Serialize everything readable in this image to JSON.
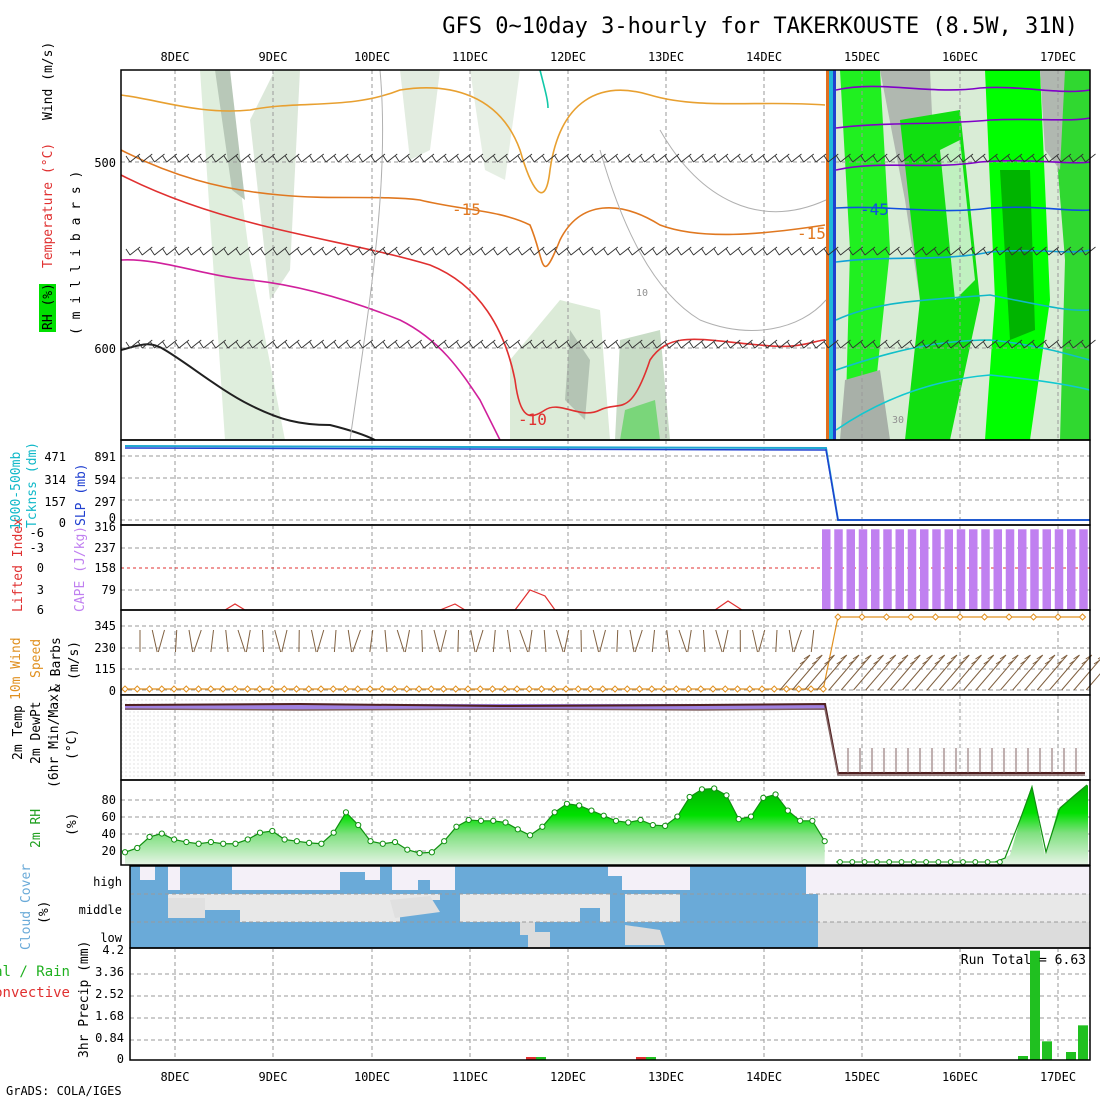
{
  "title": "GFS 0~10day 3-hourly for TAKERKOUSTE (8.5W, 31N)",
  "footer": "GrADS: COLA/IGES",
  "x_axis_dates": [
    "8DEC",
    "9DEC",
    "10DEC",
    "11DEC",
    "12DEC",
    "13DEC",
    "14DEC",
    "15DEC",
    "16DEC",
    "17DEC"
  ],
  "colors": {
    "rh_green_dark": "#00b400",
    "rh_green": "#00ff00",
    "rh_green_light": "#b4f0b4",
    "rh_gray": "#a0a0a0",
    "temp_orange": "#e08020",
    "temp_red": "#e03030",
    "temp_magenta": "#d0209c",
    "temp_purple": "#8000c8",
    "temp_cyan": "#10b8c8",
    "thickness": "#20a8d0",
    "slp_blue": "#2040d0",
    "cape_purple": "#c080f0",
    "li_red": "#e03030",
    "wind_orange": "#e09020",
    "cloud_blue": "#6aaad8",
    "precip_green": "#20c020"
  },
  "panels": {
    "upper_air": {
      "ylabel_parts": [
        "RH (%)",
        "Temperature (°C)",
        "Wind (m/s)"
      ],
      "ylabel_units": "( m i l l i b a r s )",
      "pressure_ticks": [
        "500",
        "600"
      ],
      "contour_labels": [
        "-15",
        "-15",
        "-45",
        "-10",
        "10",
        "30"
      ]
    },
    "thickness_slp": {
      "ylabel_left": "1000-500mb",
      "ylabel_left2": "Tcknss (dm)",
      "ylabel_right": "SLP (mb)",
      "ticks_left": [
        "471",
        "314",
        "157",
        "0"
      ],
      "ticks_right": [
        "891",
        "594",
        "297",
        "0"
      ],
      "top_tick": "316"
    },
    "cape_li": {
      "ylabel_left": "Lifted Index",
      "ylabel_right": "CAPE (J/kg)",
      "ticks_left": [
        "-6",
        "-3",
        "0",
        "3",
        "6"
      ],
      "ticks_right": [
        "237",
        "158",
        "79"
      ]
    },
    "wind10m": {
      "ylabel_1": "10m Wind",
      "ylabel_2": "Speed",
      "ylabel_3": "& Barbs",
      "ylabel_units": "(m/s)",
      "ticks": [
        "345",
        "230",
        "115",
        "0"
      ]
    },
    "temp2m": {
      "ylabel_1": "2m Temp",
      "ylabel_2": "2m DewPt",
      "ylabel_3": "(6hr Min/Max)",
      "ylabel_units": "(°C)"
    },
    "rh2m": {
      "ylabel": "2m RH",
      "ylabel_units": "(%)",
      "ticks": [
        "80",
        "60",
        "40",
        "20"
      ]
    },
    "cloud": {
      "ylabel": "Cloud Cover",
      "ylabel_units": "(%)",
      "levels": [
        "high",
        "middle",
        "low"
      ]
    },
    "precip": {
      "ylabel_left1": "Total / Rain",
      "ylabel_left2": "Convective",
      "ylabel": "3hr Precip (mm)",
      "ticks": [
        "4.2",
        "3.36",
        "2.52",
        "1.68",
        "0.84",
        "0"
      ],
      "run_total": "Run Total = 6.63"
    }
  },
  "chart_data": [
    {
      "type": "line",
      "name": "2m RH",
      "x_unit": "days from start (7DEC 12Z)",
      "x": [
        0.0,
        0.125,
        0.25,
        0.375,
        0.5,
        0.625,
        0.75,
        0.875,
        1.0,
        1.125,
        1.25,
        1.375,
        1.5,
        1.625,
        1.75,
        1.875,
        2.0,
        2.125,
        2.25,
        2.375,
        2.5,
        2.625,
        2.75,
        2.875,
        3.0,
        3.125,
        3.25,
        3.375,
        3.5,
        3.625,
        3.75,
        3.875,
        4.0,
        4.125,
        4.25,
        4.375,
        4.5,
        4.625,
        4.75,
        4.875,
        5.0,
        5.125,
        5.25,
        5.375,
        5.5,
        5.625,
        5.75,
        5.875,
        6.0,
        6.125,
        6.25,
        6.375,
        6.5,
        6.625,
        6.75,
        6.875,
        7.0,
        7.125
      ],
      "y": [
        15,
        20,
        33,
        37,
        30,
        27,
        25,
        27,
        25,
        25,
        30,
        38,
        40,
        30,
        28,
        26,
        25,
        38,
        62,
        47,
        28,
        25,
        27,
        18,
        14,
        15,
        28,
        45,
        53,
        52,
        52,
        50,
        42,
        35,
        45,
        62,
        72,
        70,
        64,
        58,
        52,
        50,
        53,
        47,
        46,
        57,
        80,
        89,
        90,
        82,
        54,
        57,
        79,
        83,
        64,
        52,
        52,
        28
      ],
      "ylim": [
        0,
        100
      ]
    },
    {
      "type": "bar",
      "name": "3hr Precip",
      "ylabel": "3hr Precip (mm)",
      "x": [
        "16DEC 18Z",
        "16DEC 21Z",
        "17DEC 00Z",
        "17DEC 03Z",
        "17DEC 06Z",
        "17DEC 09Z"
      ],
      "values": [
        0.15,
        4.1,
        0.7,
        0.0,
        0.3,
        1.3
      ],
      "ylim": [
        0,
        4.2
      ]
    },
    {
      "type": "bar",
      "name": "CAPE",
      "ylabel": "CAPE (J/kg)",
      "values": [
        300,
        300,
        300,
        300,
        300,
        300,
        300,
        300,
        300,
        300,
        300,
        300,
        300,
        300,
        300,
        300,
        300,
        300,
        300,
        300,
        300,
        300
      ],
      "ylim": [
        0,
        316
      ]
    }
  ]
}
